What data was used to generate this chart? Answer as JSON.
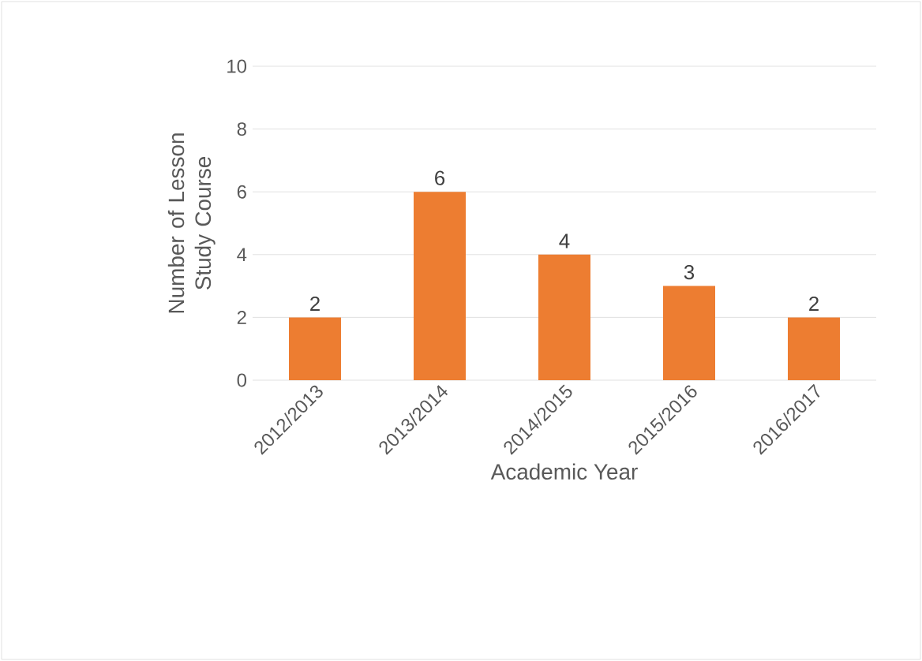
{
  "chart_data": {
    "type": "bar",
    "xlabel": "Academic Year",
    "ylabel": "Number of Lesson Study Course",
    "categories": [
      "2012/2013",
      "2013/2014",
      "2014/2015",
      "2015/2016",
      "2016/2017"
    ],
    "values": [
      2,
      6,
      4,
      3,
      2
    ],
    "color": "#ed7d31",
    "ylim": [
      0,
      10
    ],
    "yticks": [
      0,
      2,
      4,
      6,
      8,
      10
    ],
    "grid": "y",
    "data_labels": true
  }
}
